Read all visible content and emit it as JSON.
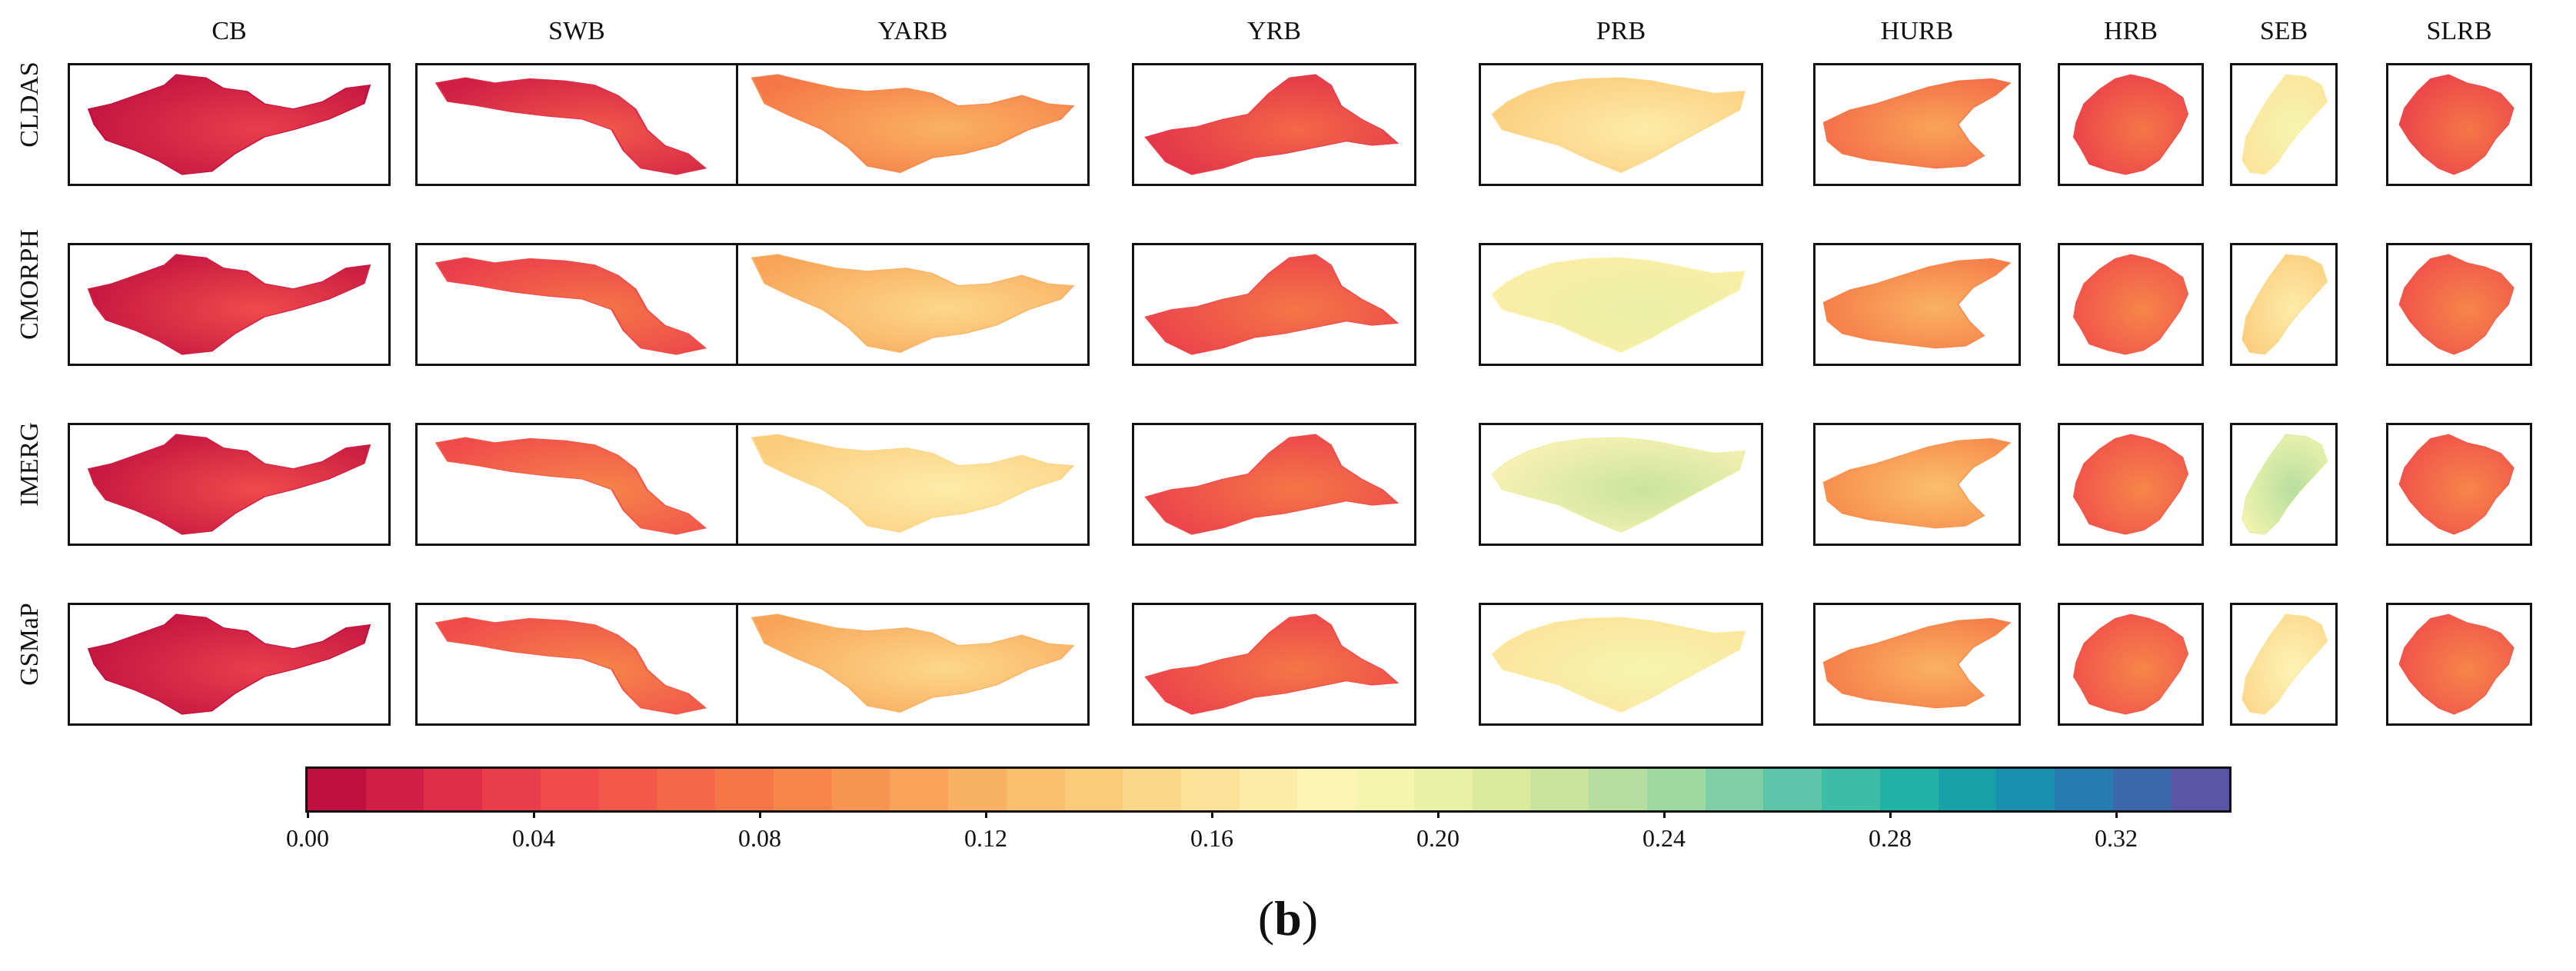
{
  "figure": {
    "columns": [
      "CB",
      "SWB",
      "YARB",
      "YRB",
      "PRB",
      "HURB",
      "HRB",
      "SEB",
      "SLRB"
    ],
    "rows": [
      "CLDAS",
      "CMORPH",
      "IMERG",
      "GSMaP"
    ],
    "caption": {
      "open": "(",
      "letter": "b",
      "close": ")"
    }
  },
  "chart_data": {
    "type": "heatmap",
    "title": "",
    "description_of_panels": "4x9 grid of spatial maps; rows = precipitation products, columns = river basins",
    "row_labels": [
      "CLDAS",
      "CMORPH",
      "IMERG",
      "GSMaP"
    ],
    "column_labels": [
      "CB",
      "SWB",
      "YARB",
      "YRB",
      "PRB",
      "HURB",
      "HRB",
      "SEB",
      "SLRB"
    ],
    "approx_mean_values": [
      [
        0.01,
        0.03,
        0.09,
        0.04,
        0.15,
        0.08,
        0.05,
        0.17,
        0.05
      ],
      [
        0.02,
        0.05,
        0.12,
        0.05,
        0.18,
        0.09,
        0.06,
        0.15,
        0.06
      ],
      [
        0.02,
        0.06,
        0.15,
        0.05,
        0.2,
        0.1,
        0.06,
        0.21,
        0.06
      ],
      [
        0.01,
        0.06,
        0.12,
        0.05,
        0.17,
        0.09,
        0.06,
        0.16,
        0.06
      ]
    ],
    "colorbar": {
      "min": 0.0,
      "max": 0.34,
      "n_bins": 33,
      "ticks": [
        0.0,
        0.04,
        0.08,
        0.12,
        0.16,
        0.2,
        0.24,
        0.28,
        0.32
      ],
      "tick_labels": [
        "0.00",
        "0.04",
        "0.08",
        "0.12",
        "0.16",
        "0.20",
        "0.24",
        "0.28",
        "0.32"
      ],
      "colors": [
        "#c0103f",
        "#d01e45",
        "#df2e4a",
        "#ea3d4c",
        "#f04b4b",
        "#f2594a",
        "#f46747",
        "#f57646",
        "#f68649",
        "#f6954f",
        "#f8a458",
        "#f9b263",
        "#fabf6e",
        "#fbcb7c",
        "#fcd78a",
        "#fde299",
        "#fdeca7",
        "#fdf3b5",
        "#f5f5b0",
        "#e9f1a6",
        "#dbeb9e",
        "#c9e49c",
        "#b6de9e",
        "#9fd7a0",
        "#7fcea6",
        "#5ec5a8",
        "#3dbda7",
        "#20b3a6",
        "#16a2a8",
        "#1a8fae",
        "#267cb0",
        "#3a68ab",
        "#5a55a5"
      ]
    }
  }
}
